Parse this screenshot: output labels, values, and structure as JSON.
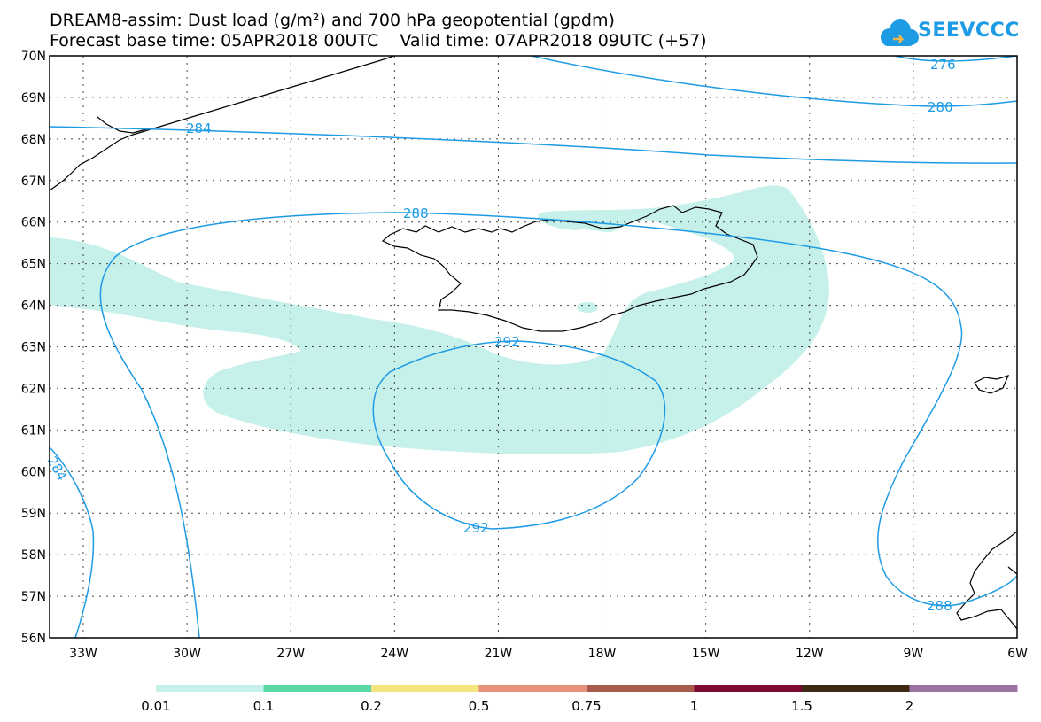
{
  "title": {
    "line1": "DREAM8-assim: Dust load (g/m²) and 700 hPa geopotential (gpdm)",
    "line2": "Forecast base time: 05APR2018 00UTC    Valid time: 07APR2018 09UTC (+57)"
  },
  "logo": {
    "text": "SEEVCCC",
    "icon": "cloud-icon",
    "color": "#1e9be5"
  },
  "map": {
    "lat_labels": [
      "70N",
      "69N",
      "68N",
      "67N",
      "66N",
      "65N",
      "64N",
      "63N",
      "62N",
      "61N",
      "60N",
      "59N",
      "58N",
      "57N",
      "56N"
    ],
    "lon_labels": [
      "33W",
      "30W",
      "27W",
      "24W",
      "21W",
      "18W",
      "15W",
      "12W",
      "9W",
      "6W"
    ],
    "contour_labels": [
      "276",
      "280",
      "284",
      "288",
      "292",
      "292",
      "284",
      "288"
    ],
    "contour_color": "#1e9be5",
    "dust_color": "#c6f0ea",
    "coast_color": "#000000"
  },
  "colorbar": {
    "labels": [
      "0.01",
      "0.1",
      "0.2",
      "0.5",
      "0.75",
      "1",
      "1.5",
      "2"
    ],
    "colors": [
      "#c6f0ea",
      "#5ad8a8",
      "#f3e47d",
      "#e8917a",
      "#a85a4d",
      "#7d0a30",
      "#3e2a14",
      "#9c72a2"
    ]
  }
}
